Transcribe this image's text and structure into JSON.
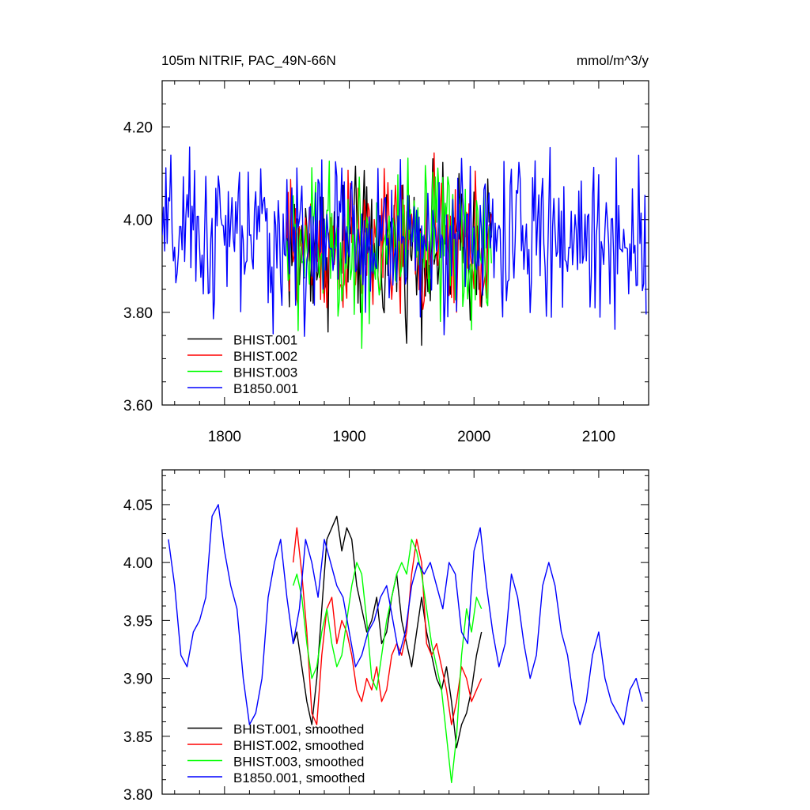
{
  "chart_data": [
    {
      "type": "line",
      "title": "105m NITRIF, PAC_49N-66N",
      "units": "mmol/m^3/y",
      "xlim": [
        1750,
        2140
      ],
      "ylim": [
        3.6,
        4.3
      ],
      "xticks": [
        1800,
        1900,
        2000,
        2100
      ],
      "yticks": [
        3.6,
        3.8,
        4.0,
        4.2
      ],
      "ytick_labels": [
        "3.60",
        "3.80",
        "4.00",
        "4.20"
      ],
      "legend_position": "lower-left",
      "series": [
        {
          "name": "BHIST.001",
          "color": "#000000",
          "x_start": 1850,
          "x_end": 2014,
          "mean": 3.94,
          "amplitude": 0.12
        },
        {
          "name": "BHIST.002",
          "color": "#ff0000",
          "x_start": 1850,
          "x_end": 2014,
          "mean": 3.94,
          "amplitude": 0.12
        },
        {
          "name": "BHIST.003",
          "color": "#00ff00",
          "x_start": 1850,
          "x_end": 2014,
          "mean": 3.94,
          "amplitude": 0.13
        },
        {
          "name": "B1850.001",
          "color": "#0000ff",
          "x_start": 1750,
          "x_end": 2138,
          "mean": 3.96,
          "amplitude": 0.13
        }
      ]
    },
    {
      "type": "line",
      "xlim": [
        1750,
        2140
      ],
      "ylim": [
        3.8,
        4.08
      ],
      "xticks": [
        1800,
        1900,
        2000,
        2100
      ],
      "yticks": [
        3.8,
        3.85,
        3.9,
        3.95,
        4.0,
        4.05
      ],
      "ytick_labels": [
        "3.80",
        "3.85",
        "3.90",
        "3.95",
        "4.00",
        "4.05"
      ],
      "legend_position": "lower-left",
      "series": [
        {
          "name": "BHIST.001, smoothed",
          "color": "#000000",
          "x": [
            1855,
            1858,
            1862,
            1866,
            1870,
            1874,
            1878,
            1882,
            1886,
            1890,
            1894,
            1898,
            1902,
            1906,
            1910,
            1914,
            1918,
            1922,
            1926,
            1930,
            1934,
            1938,
            1942,
            1946,
            1950,
            1954,
            1958,
            1962,
            1966,
            1970,
            1974,
            1978,
            1982,
            1986,
            1990,
            1994,
            1998,
            2002,
            2006
          ],
          "y": [
            3.93,
            3.94,
            3.91,
            3.88,
            3.86,
            3.9,
            3.96,
            4.02,
            4.03,
            4.04,
            4.01,
            4.03,
            4.02,
            3.98,
            3.96,
            3.94,
            3.95,
            3.97,
            3.93,
            3.94,
            3.97,
            3.99,
            3.95,
            3.93,
            3.91,
            3.94,
            3.97,
            3.94,
            3.92,
            3.9,
            3.89,
            3.91,
            3.88,
            3.84,
            3.86,
            3.87,
            3.89,
            3.92,
            3.94
          ]
        },
        {
          "name": "BHIST.002, smoothed",
          "color": "#ff0000",
          "x": [
            1855,
            1858,
            1862,
            1866,
            1870,
            1874,
            1878,
            1882,
            1886,
            1890,
            1894,
            1898,
            1902,
            1906,
            1910,
            1914,
            1918,
            1922,
            1926,
            1930,
            1934,
            1938,
            1942,
            1946,
            1950,
            1954,
            1958,
            1962,
            1966,
            1970,
            1974,
            1978,
            1982,
            1986,
            1990,
            1994,
            1998,
            2002,
            2006
          ],
          "y": [
            4.0,
            4.03,
            3.99,
            3.94,
            3.87,
            3.86,
            3.92,
            3.96,
            3.97,
            3.93,
            3.95,
            3.94,
            3.92,
            3.89,
            3.88,
            3.9,
            3.89,
            3.91,
            3.88,
            3.89,
            3.92,
            3.93,
            3.92,
            3.94,
            3.99,
            4.02,
            4.0,
            3.93,
            3.92,
            3.93,
            3.91,
            3.89,
            3.86,
            3.88,
            3.91,
            3.9,
            3.88,
            3.89,
            3.9
          ]
        },
        {
          "name": "BHIST.003, smoothed",
          "color": "#00ff00",
          "x": [
            1855,
            1858,
            1862,
            1866,
            1870,
            1874,
            1878,
            1882,
            1886,
            1890,
            1894,
            1898,
            1902,
            1906,
            1910,
            1914,
            1918,
            1922,
            1926,
            1930,
            1934,
            1938,
            1942,
            1946,
            1950,
            1954,
            1958,
            1962,
            1966,
            1970,
            1974,
            1978,
            1982,
            1986,
            1990,
            1994,
            1998,
            2002,
            2006
          ],
          "y": [
            3.98,
            3.99,
            3.97,
            3.93,
            3.9,
            3.91,
            3.94,
            3.96,
            3.93,
            3.91,
            3.92,
            3.95,
            3.98,
            4.0,
            3.99,
            3.95,
            3.9,
            3.89,
            3.92,
            3.95,
            3.97,
            3.99,
            4.0,
            3.99,
            4.02,
            4.01,
            3.99,
            3.96,
            3.93,
            3.91,
            3.89,
            3.85,
            3.81,
            3.85,
            3.92,
            3.96,
            3.94,
            3.97,
            3.96
          ]
        },
        {
          "name": "B1850.001, smoothed",
          "color": "#0000ff",
          "x": [
            1755,
            1760,
            1765,
            1770,
            1775,
            1780,
            1785,
            1790,
            1795,
            1800,
            1805,
            1810,
            1815,
            1820,
            1825,
            1830,
            1835,
            1840,
            1845,
            1850,
            1855,
            1860,
            1865,
            1870,
            1875,
            1880,
            1885,
            1890,
            1895,
            1900,
            1905,
            1910,
            1915,
            1920,
            1925,
            1930,
            1935,
            1940,
            1945,
            1950,
            1955,
            1960,
            1965,
            1970,
            1975,
            1980,
            1985,
            1990,
            1995,
            2000,
            2005,
            2010,
            2015,
            2020,
            2025,
            2030,
            2035,
            2040,
            2045,
            2050,
            2055,
            2060,
            2065,
            2070,
            2075,
            2080,
            2085,
            2090,
            2095,
            2100,
            2105,
            2110,
            2115,
            2120,
            2125,
            2130,
            2135
          ],
          "y": [
            4.02,
            3.98,
            3.92,
            3.91,
            3.94,
            3.95,
            3.97,
            4.04,
            4.05,
            4.01,
            3.98,
            3.96,
            3.9,
            3.86,
            3.87,
            3.9,
            3.97,
            4.0,
            4.02,
            3.97,
            3.93,
            3.96,
            4.02,
            4.0,
            3.97,
            4.02,
            4.0,
            3.98,
            3.97,
            3.94,
            3.91,
            3.92,
            3.94,
            3.95,
            3.97,
            3.98,
            3.95,
            3.92,
            3.94,
            3.98,
            4.0,
            3.99,
            4.0,
            3.98,
            3.96,
            4.0,
            3.99,
            3.94,
            3.93,
            4.01,
            4.03,
            3.98,
            3.94,
            3.91,
            3.93,
            3.99,
            3.97,
            3.93,
            3.9,
            3.92,
            3.98,
            4.0,
            3.98,
            3.94,
            3.92,
            3.88,
            3.86,
            3.88,
            3.92,
            3.94,
            3.9,
            3.88,
            3.87,
            3.86,
            3.89,
            3.9,
            3.88
          ]
        }
      ]
    }
  ]
}
